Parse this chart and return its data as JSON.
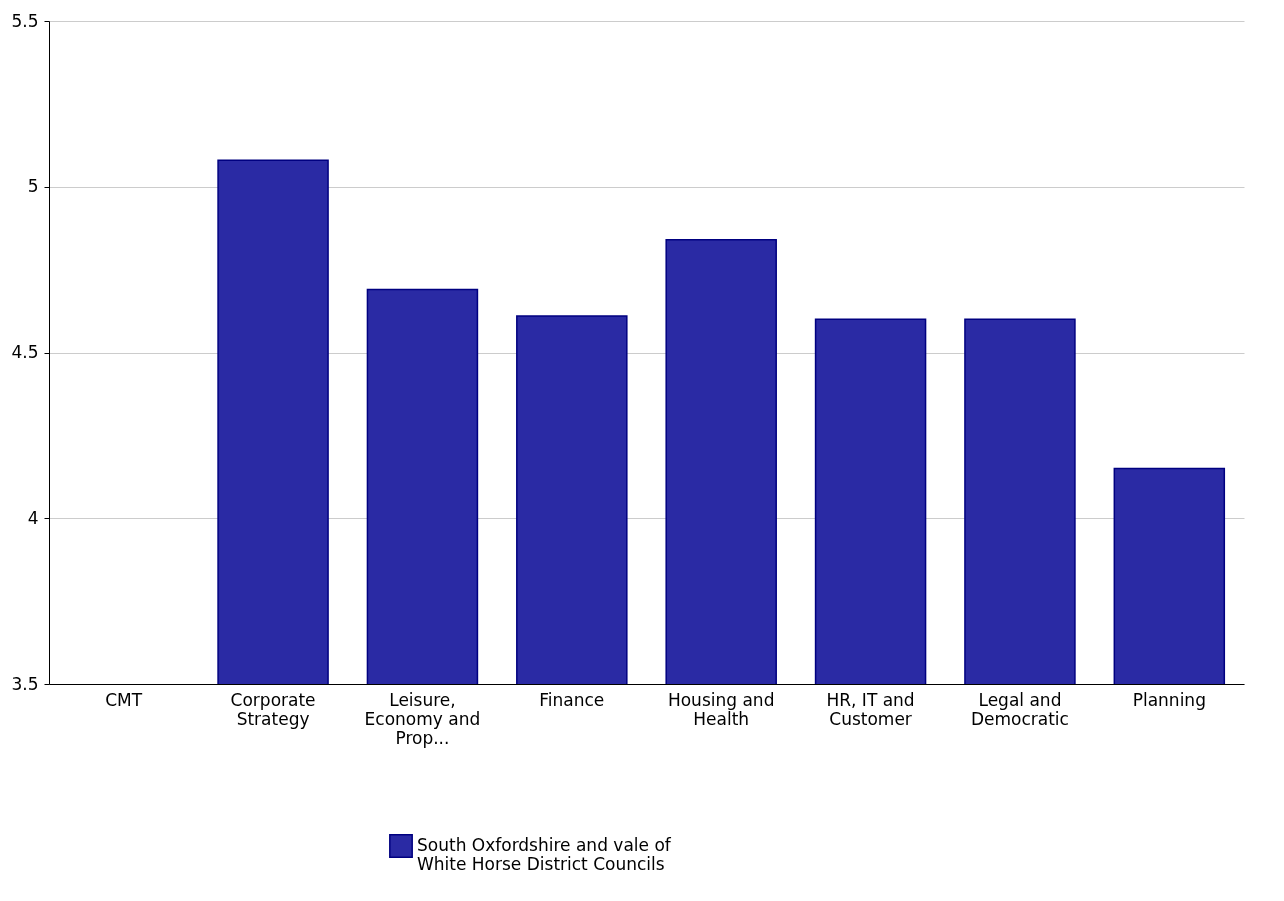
{
  "chart_data": {
    "type": "bar",
    "categories": [
      "CMT",
      "Corporate Strategy",
      "Leisure, Economy and Prop...",
      "Finance",
      "Housing and Health",
      "HR, IT and Customer",
      "Legal and Democratic",
      "Planning"
    ],
    "series": [
      {
        "name": "South Oxfordshire and vale of White Horse District Councils",
        "color": "#2a2aa4",
        "values": [
          null,
          5.08,
          4.69,
          4.61,
          4.84,
          4.6,
          4.6,
          4.15
        ]
      }
    ],
    "ylim": [
      3.5,
      5.5
    ],
    "yticks": [
      3.5,
      4,
      4.5,
      5,
      5.5
    ],
    "grid": "y",
    "legend": "bottom"
  }
}
